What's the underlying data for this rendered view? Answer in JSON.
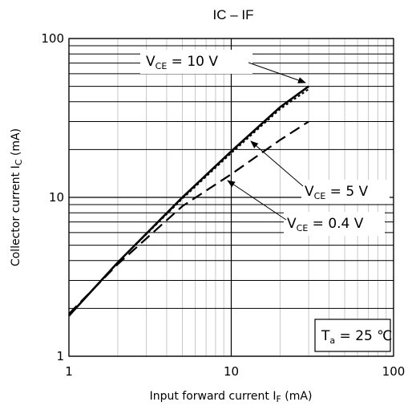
{
  "chart_data": {
    "type": "line",
    "title": "IC – IF",
    "x_scale": "log",
    "y_scale": "log",
    "xlim": [
      1,
      100
    ],
    "ylim": [
      1,
      100
    ],
    "grid": true,
    "xlabel": {
      "main": "Input forward current I",
      "sub": "F",
      "unit": " (mA)"
    },
    "ylabel": {
      "main": "Collector current I",
      "sub": "C",
      "unit": " (mA)"
    },
    "x_ticks": [
      1,
      10,
      100
    ],
    "y_ticks": [
      1,
      10,
      100
    ],
    "x_tick_labels": [
      "1",
      "10",
      "100"
    ],
    "y_tick_labels": [
      "1",
      "10",
      "100"
    ],
    "series": [
      {
        "name": "VCE = 10 V",
        "style": "solid",
        "x": [
          1,
          2,
          5,
          10,
          20,
          30
        ],
        "y": [
          1.8,
          3.9,
          10,
          19.5,
          37,
          50
        ]
      },
      {
        "name": "VCE = 5 V",
        "style": "dotted",
        "x": [
          1,
          2,
          5,
          10,
          20,
          30
        ],
        "y": [
          1.8,
          3.9,
          9.8,
          19,
          36,
          48
        ]
      },
      {
        "name": "VCE = 0.4 V",
        "style": "dashed",
        "x": [
          1,
          2,
          5,
          10,
          20,
          30
        ],
        "y": [
          1.85,
          3.8,
          8.8,
          14,
          23,
          30
        ]
      }
    ],
    "annotations": [
      {
        "name": "vce-10v",
        "main": "V",
        "sub": "CE",
        "rest": " = 10 V"
      },
      {
        "name": "vce-5v",
        "main": "V",
        "sub": "CE",
        "rest": " = 5 V"
      },
      {
        "name": "vce-04v",
        "main": "V",
        "sub": "CE",
        "rest": " = 0.4 V"
      }
    ],
    "condition": {
      "main": "T",
      "sub": "a",
      "rest": " = 25 ℃"
    }
  }
}
